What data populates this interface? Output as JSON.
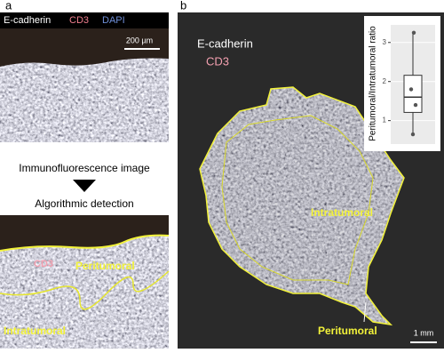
{
  "panel_a": {
    "label": "a",
    "stains": [
      "E-cadherin",
      "CD3",
      "DAPI"
    ],
    "scale_bar": "200 µm",
    "step1": "Immunofluorescence image",
    "step2": "Algorithmic detection",
    "detect_labels": {
      "cd3": "CD3",
      "peritumoral": "Peritumoral",
      "intratumoral": "Intratumoral"
    }
  },
  "panel_b": {
    "label": "b",
    "stains": [
      "E-cadherin",
      "CD3"
    ],
    "intratumoral": "Intratumoral",
    "peritumoral": "Peritumoral",
    "scale_bar": "1 mm"
  },
  "chart_data": {
    "type": "box",
    "y_label": "Peritumoral/Intratumoral ratio",
    "values": [
      0.65,
      1.4,
      1.8,
      3.25
    ],
    "box": {
      "min": 0.65,
      "q1": 1.21,
      "median": 1.6,
      "q3": 2.16,
      "max": 3.25
    },
    "ylim": [
      0.4,
      3.45
    ],
    "yticks": [
      1,
      2,
      3
    ],
    "grid": true
  }
}
